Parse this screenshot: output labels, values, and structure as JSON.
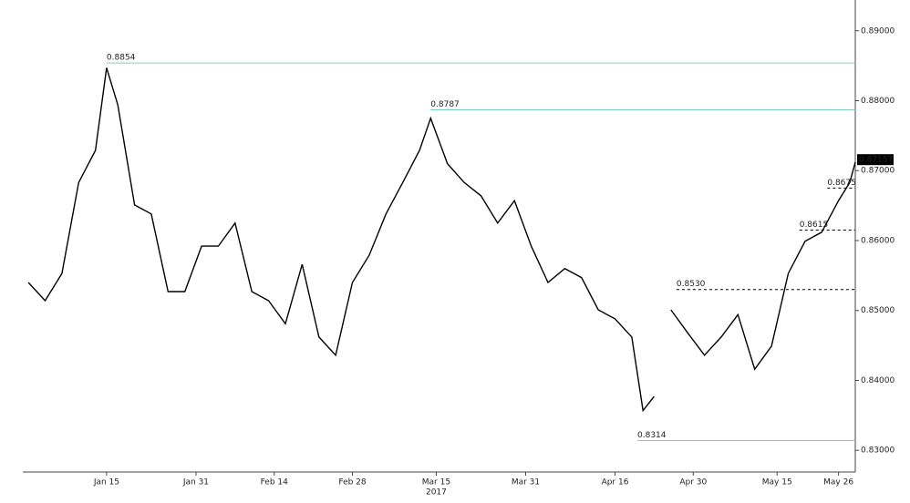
{
  "chart_data": {
    "type": "line",
    "year_label": "2017",
    "xlim": [
      "2016-12-31",
      "2017-05-29"
    ],
    "xticks": [
      {
        "value": "2017-01-15",
        "label": "Jan 15"
      },
      {
        "value": "2017-01-31",
        "label": "Jan 31"
      },
      {
        "value": "2017-02-14",
        "label": "Feb 14"
      },
      {
        "value": "2017-02-28",
        "label": "Feb 28"
      },
      {
        "value": "2017-03-15",
        "label": "Mar 15"
      },
      {
        "value": "2017-03-31",
        "label": "Mar 31"
      },
      {
        "value": "2017-04-16",
        "label": "Apr 16"
      },
      {
        "value": "2017-04-30",
        "label": "Apr 30"
      },
      {
        "value": "2017-05-15",
        "label": "May 15"
      },
      {
        "value": "2017-05-26",
        "label": "May 26"
      }
    ],
    "ylim": [
      0.8269,
      0.8944
    ],
    "yticks": [
      {
        "value": 0.83,
        "label": "0.83000"
      },
      {
        "value": 0.84,
        "label": "0.84000"
      },
      {
        "value": 0.85,
        "label": "0.85000"
      },
      {
        "value": 0.86,
        "label": "0.86000"
      },
      {
        "value": 0.87,
        "label": "0.87000"
      },
      {
        "value": 0.88,
        "label": "0.88000"
      },
      {
        "value": 0.89,
        "label": "0.89000"
      }
    ],
    "x": [
      "2017-01-01",
      "2017-01-04",
      "2017-01-07",
      "2017-01-10",
      "2017-01-13",
      "2017-01-15",
      "2017-01-17",
      "2017-01-20",
      "2017-01-23",
      "2017-01-26",
      "2017-01-29",
      "2017-02-01",
      "2017-02-04",
      "2017-02-07",
      "2017-02-10",
      "2017-02-13",
      "2017-02-16",
      "2017-02-19",
      "2017-02-22",
      "2017-02-25",
      "2017-02-28",
      "2017-03-03",
      "2017-03-06",
      "2017-03-09",
      "2017-03-12",
      "2017-03-14",
      "2017-03-17",
      "2017-03-20",
      "2017-03-23",
      "2017-03-26",
      "2017-03-29",
      "2017-04-01",
      "2017-04-04",
      "2017-04-07",
      "2017-04-10",
      "2017-04-13",
      "2017-04-16",
      "2017-04-19",
      "2017-04-21",
      "2017-04-23",
      "2017-04-24",
      "2017-04-26",
      "2017-04-29",
      "2017-05-02",
      "2017-05-05",
      "2017-05-08",
      "2017-05-11",
      "2017-05-14",
      "2017-05-17",
      "2017-05-20",
      "2017-05-23",
      "2017-05-26",
      "2017-05-28",
      "2017-05-29"
    ],
    "series": [
      {
        "color": "#000000",
        "values": [
          0.854,
          0.8514,
          0.8553,
          0.8683,
          0.8729,
          0.8847,
          0.8794,
          0.8651,
          0.8638,
          0.8527,
          0.8527,
          0.8592,
          0.8592,
          0.8625,
          0.8527,
          0.8514,
          0.8481,
          0.8566,
          0.8462,
          0.8436,
          0.854,
          0.8579,
          0.8638,
          0.8683,
          0.8729,
          0.8775,
          0.871,
          0.8683,
          0.8664,
          0.8625,
          0.8657,
          0.8592,
          0.854,
          0.856,
          0.8547,
          0.8501,
          0.8488,
          0.8462,
          0.8357,
          0.8377,
          null,
          0.8501,
          0.8468,
          0.8436,
          0.8462,
          0.8494,
          0.8416,
          0.8449,
          0.8553,
          0.8599,
          0.8612,
          0.8657,
          0.8683,
          0.8712
        ]
      }
    ],
    "levels": [
      {
        "value": 0.8854,
        "start": "2017-01-15",
        "color": "#7fcfbf",
        "dashed": false
      },
      {
        "value": 0.8787,
        "start": "2017-03-14",
        "color": "#7fcfbf",
        "dashed": false
      },
      {
        "value": 0.8314,
        "start": "2017-04-20",
        "color": "#7fcfbf",
        "dashed": false
      },
      {
        "value": 0.853,
        "label": "0.8530",
        "start": "2017-04-27",
        "color": "#000000",
        "dashed": true
      },
      {
        "value": 0.8615,
        "start": "2017-05-19",
        "color": "#000000",
        "dashed": true
      },
      {
        "value": 0.8675,
        "start": "2017-05-24",
        "color": "#000000",
        "dashed": true
      }
    ],
    "last_value": 0.87157
  }
}
